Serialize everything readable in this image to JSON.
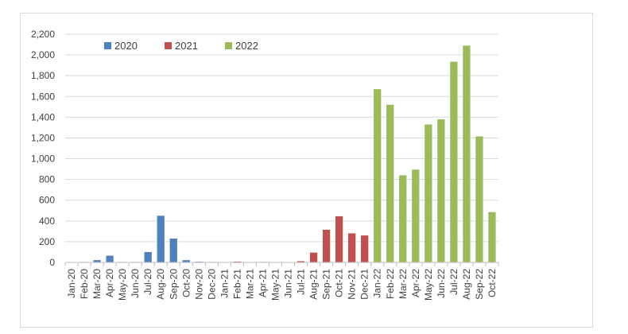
{
  "chart_data": {
    "type": "bar",
    "title": "",
    "xlabel": "",
    "ylabel": "",
    "ylim": [
      0,
      2200
    ],
    "y_ticks": [
      "0",
      "200",
      "400",
      "600",
      "800",
      "1,000",
      "1,200",
      "1,400",
      "1,600",
      "1,800",
      "2,000",
      "2,200"
    ],
    "grid": true,
    "legend_position": "top-left",
    "categories": [
      "Jan-20",
      "Feb-20",
      "Mar-20",
      "Apr-20",
      "May-20",
      "Jun-20",
      "Jul-20",
      "Aug-20",
      "Sep-20",
      "Oct-20",
      "Nov-20",
      "Dec-20",
      "Jan-21",
      "Feb-21",
      "Mar-21",
      "Apr-21",
      "May-21",
      "Jun-21",
      "Jul-21",
      "Aug-21",
      "Sep-21",
      "Oct-21",
      "Nov-21",
      "Dec-21",
      "Jan-22",
      "Feb-22",
      "Mar-22",
      "Apr-22",
      "May-22",
      "Jun-22",
      "Jul-22",
      "Aug-22",
      "Sep-22",
      "Oct-22"
    ],
    "series": [
      {
        "name": "2020",
        "color": "#4f81bd",
        "values": [
          3,
          5,
          22,
          65,
          5,
          5,
          100,
          450,
          230,
          22,
          7,
          5,
          null,
          null,
          null,
          null,
          null,
          null,
          null,
          null,
          null,
          null,
          null,
          null,
          null,
          null,
          null,
          null,
          null,
          null,
          null,
          null,
          null,
          null
        ]
      },
      {
        "name": "2021",
        "color": "#c0504d",
        "values": [
          null,
          null,
          null,
          null,
          null,
          null,
          null,
          null,
          null,
          null,
          null,
          null,
          3,
          8,
          3,
          5,
          3,
          3,
          12,
          95,
          315,
          445,
          280,
          260,
          null,
          null,
          null,
          null,
          null,
          null,
          null,
          null,
          null,
          null
        ]
      },
      {
        "name": "2022",
        "color": "#9bbb59",
        "values": [
          null,
          null,
          null,
          null,
          null,
          null,
          null,
          null,
          null,
          null,
          null,
          null,
          null,
          null,
          null,
          null,
          null,
          null,
          null,
          null,
          null,
          null,
          null,
          null,
          1670,
          1520,
          840,
          895,
          1330,
          1380,
          1935,
          2090,
          1215,
          485
        ]
      }
    ]
  }
}
